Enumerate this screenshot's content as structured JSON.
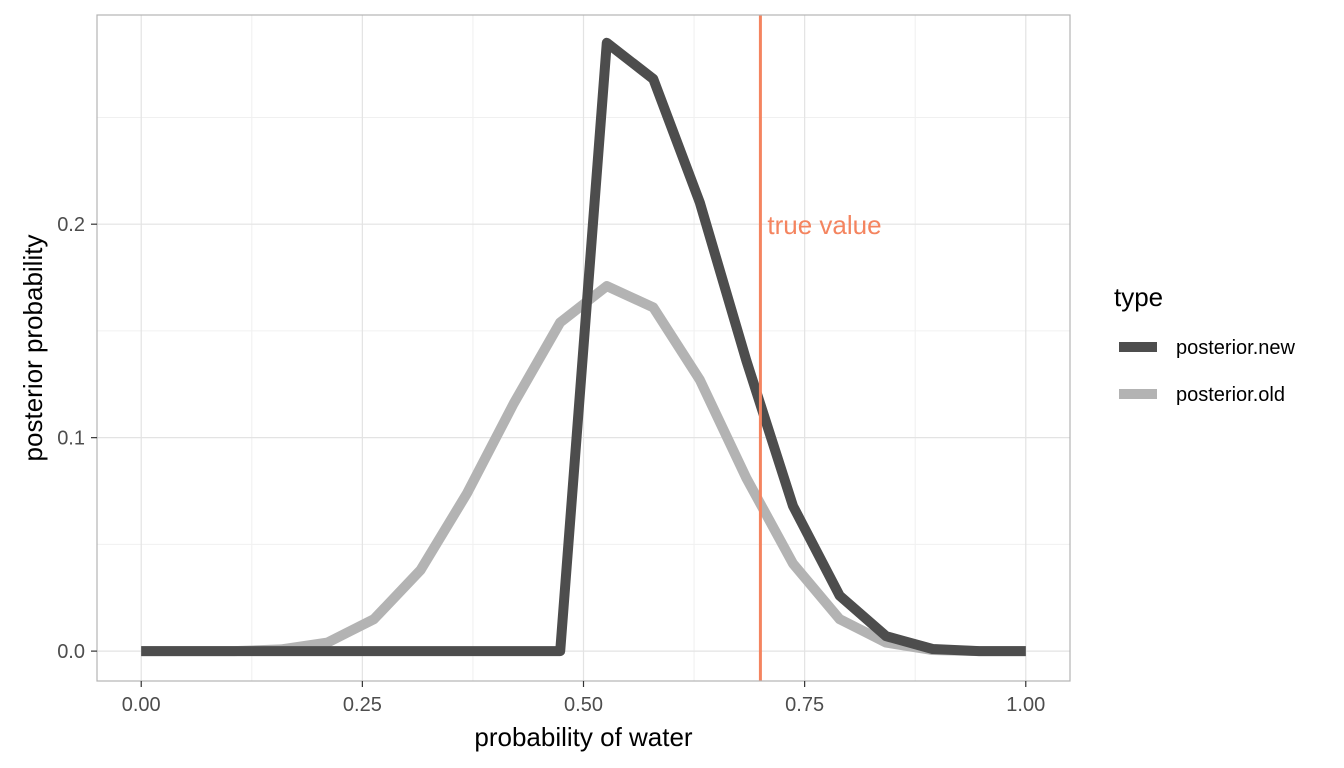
{
  "chart_data": {
    "type": "line",
    "xlabel": "probability of water",
    "ylabel": "posterior probability",
    "xlim": [
      -0.05,
      1.05
    ],
    "ylim": [
      -0.014,
      0.298
    ],
    "x_ticks": [
      0,
      0.25,
      0.5,
      0.75,
      1
    ],
    "x_tick_labels": [
      "0.00",
      "0.25",
      "0.50",
      "0.75",
      "1.00"
    ],
    "y_ticks": [
      0,
      0.1,
      0.2
    ],
    "y_tick_labels": [
      "0.0",
      "0.1",
      "0.2"
    ],
    "grid": true,
    "legend": {
      "title": "type",
      "position": "right"
    },
    "series": [
      {
        "name": "posterior.new",
        "color": "#4d4d4d",
        "x": [
          0.0,
          0.0526,
          0.1053,
          0.1579,
          0.2105,
          0.2632,
          0.3158,
          0.3684,
          0.4211,
          0.4737,
          0.5263,
          0.5789,
          0.6316,
          0.6842,
          0.7368,
          0.7895,
          0.8421,
          0.8947,
          0.9474,
          1.0
        ],
        "y": [
          0,
          0,
          0,
          0,
          0,
          0,
          0,
          0,
          0,
          0,
          0.285,
          0.268,
          0.21,
          0.136,
          0.068,
          0.026,
          0.007,
          0.001,
          0,
          0
        ]
      },
      {
        "name": "posterior.old",
        "color": "#b3b3b3",
        "x": [
          0.0,
          0.0526,
          0.1053,
          0.1579,
          0.2105,
          0.2632,
          0.3158,
          0.3684,
          0.4211,
          0.4737,
          0.5263,
          0.5789,
          0.6316,
          0.6842,
          0.7368,
          0.7895,
          0.8421,
          0.8947,
          0.9474,
          1.0
        ],
        "y": [
          0,
          0,
          0,
          0.0008,
          0.004,
          0.015,
          0.038,
          0.074,
          0.116,
          0.154,
          0.171,
          0.161,
          0.127,
          0.081,
          0.041,
          0.015,
          0.004,
          0.0005,
          0,
          0
        ]
      }
    ],
    "annotations": [
      {
        "type": "vline",
        "x": 0.7,
        "color": "#f4845f"
      },
      {
        "type": "text",
        "text": "true value",
        "x": 0.7,
        "y": 0.2,
        "color": "#f4845f"
      }
    ]
  }
}
